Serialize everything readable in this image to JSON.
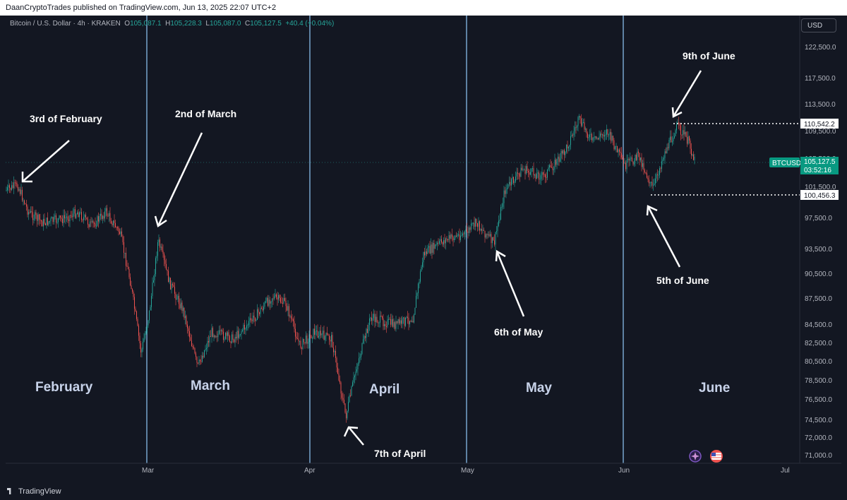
{
  "publisher_line": "DaanCryptoTrades published on TradingView.com, Jun 13, 2025 22:07 UTC+2",
  "legend": {
    "symbol": "Bitcoin / U.S. Dollar · 4h · KRAKEN",
    "o_label": "O",
    "o": "105,087.1",
    "h_label": "H",
    "h": "105,228.3",
    "l_label": "L",
    "l": "105,087.0",
    "c_label": "C",
    "c": "105,127.5",
    "change": "+40.4 (+0.04%)"
  },
  "currency_button": "USD",
  "brand": "TradingView",
  "colors": {
    "up": "#26a69a",
    "down": "#ef5350",
    "background": "#131722",
    "separator": "#90caf9",
    "month_label": "#c8d3ea",
    "annotation": "#ffffff",
    "price_tag": "#089981"
  },
  "price_axis": {
    "ticks": [
      "122,500.0",
      "117,500.0",
      "113,500.0",
      "109,500.0",
      "105,500.0",
      "101,500.0",
      "97,500.0",
      "93,500.0",
      "90,500.0",
      "87,500.0",
      "84,500.0",
      "82,500.0",
      "80,500.0",
      "78,500.0",
      "76,500.0",
      "74,500.0",
      "72,000.0",
      "71,000.0"
    ],
    "tags": {
      "high_line": "110,542.2",
      "low_line": "100,456.3",
      "symbol_tag": "BTCUSD",
      "last_price": "105,127.5",
      "countdown": "03:52:16"
    }
  },
  "time_axis": [
    "Mar",
    "Apr",
    "May",
    "Jun",
    "Jul"
  ],
  "month_labels": [
    "February",
    "March",
    "April",
    "May",
    "June"
  ],
  "annotations": {
    "feb": "3rd of February",
    "mar": "2nd of March",
    "apr": "7th of April",
    "may": "6th of May",
    "jun5": "5th of June",
    "jun9": "9th of June"
  },
  "icon_names": [
    "sparkle-icon",
    "flag-icon"
  ]
}
